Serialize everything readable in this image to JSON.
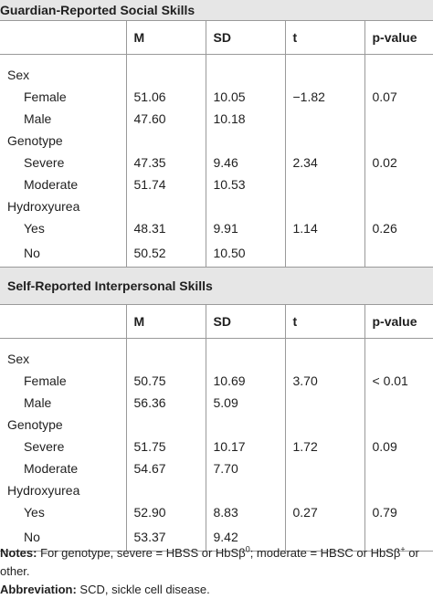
{
  "section1": {
    "title": "Guardian-Reported Social Skills",
    "headers": [
      "",
      "M",
      "SD",
      "t",
      "p-value"
    ],
    "rows": [
      {
        "label": "Sex",
        "m": "",
        "sd": "",
        "t": "",
        "p": "",
        "indent": false
      },
      {
        "label": "Female",
        "m": "51.06",
        "sd": "10.05",
        "t": "−1.82",
        "p": "0.07",
        "indent": true
      },
      {
        "label": "Male",
        "m": "47.60",
        "sd": "10.18",
        "t": "",
        "p": "",
        "indent": true
      },
      {
        "label": "Genotype",
        "m": "",
        "sd": "",
        "t": "",
        "p": "",
        "indent": false
      },
      {
        "label": "Severe",
        "m": "47.35",
        "sd": "9.46",
        "t": "2.34",
        "p": "0.02",
        "indent": true
      },
      {
        "label": "Moderate",
        "m": "51.74",
        "sd": "10.53",
        "t": "",
        "p": "",
        "indent": true
      },
      {
        "label": "Hydroxyurea",
        "m": "",
        "sd": "",
        "t": "",
        "p": "",
        "indent": false
      },
      {
        "label": "Yes",
        "m": "48.31",
        "sd": "9.91",
        "t": "1.14",
        "p": "0.26",
        "indent": true
      },
      {
        "label": "No",
        "m": "50.52",
        "sd": "10.50",
        "t": "",
        "p": "",
        "indent": true
      }
    ]
  },
  "section2": {
    "title": "Self-Reported Interpersonal Skills",
    "headers": [
      "",
      "M",
      "SD",
      "t",
      "p-value"
    ],
    "rows": [
      {
        "label": "Sex",
        "m": "",
        "sd": "",
        "t": "",
        "p": "",
        "indent": false
      },
      {
        "label": "Female",
        "m": "50.75",
        "sd": "10.69",
        "t": "3.70",
        "p": "< 0.01",
        "indent": true
      },
      {
        "label": "Male",
        "m": "56.36",
        "sd": "5.09",
        "t": "",
        "p": "",
        "indent": true
      },
      {
        "label": "Genotype",
        "m": "",
        "sd": "",
        "t": "",
        "p": "",
        "indent": false
      },
      {
        "label": "Severe",
        "m": "51.75",
        "sd": "10.17",
        "t": "1.72",
        "p": "0.09",
        "indent": true
      },
      {
        "label": "Moderate",
        "m": "54.67",
        "sd": "7.70",
        "t": "",
        "p": "",
        "indent": true
      },
      {
        "label": "Hydroxyurea",
        "m": "",
        "sd": "",
        "t": "",
        "p": "",
        "indent": false
      },
      {
        "label": "Yes",
        "m": "52.90",
        "sd": "8.83",
        "t": "0.27",
        "p": "0.79",
        "indent": true
      },
      {
        "label": "No",
        "m": "53.37",
        "sd": "9.42",
        "t": "",
        "p": "",
        "indent": true
      }
    ]
  },
  "notes": {
    "notes_label": "Notes:",
    "notes_text_a": " For genotype, severe = HBSS or HbSβ",
    "notes_sup_a": "0",
    "notes_text_b": "; moderate = HBSC or HbSβ",
    "notes_sup_b": "+",
    "notes_text_c": " or other.",
    "abbrev_label": "Abbreviation:",
    "abbrev_text": " SCD, sickle cell disease."
  },
  "colors": {
    "rule": "#9a9a9a",
    "title_bg": "#e6e6e6",
    "text": "#1f1f1f"
  }
}
